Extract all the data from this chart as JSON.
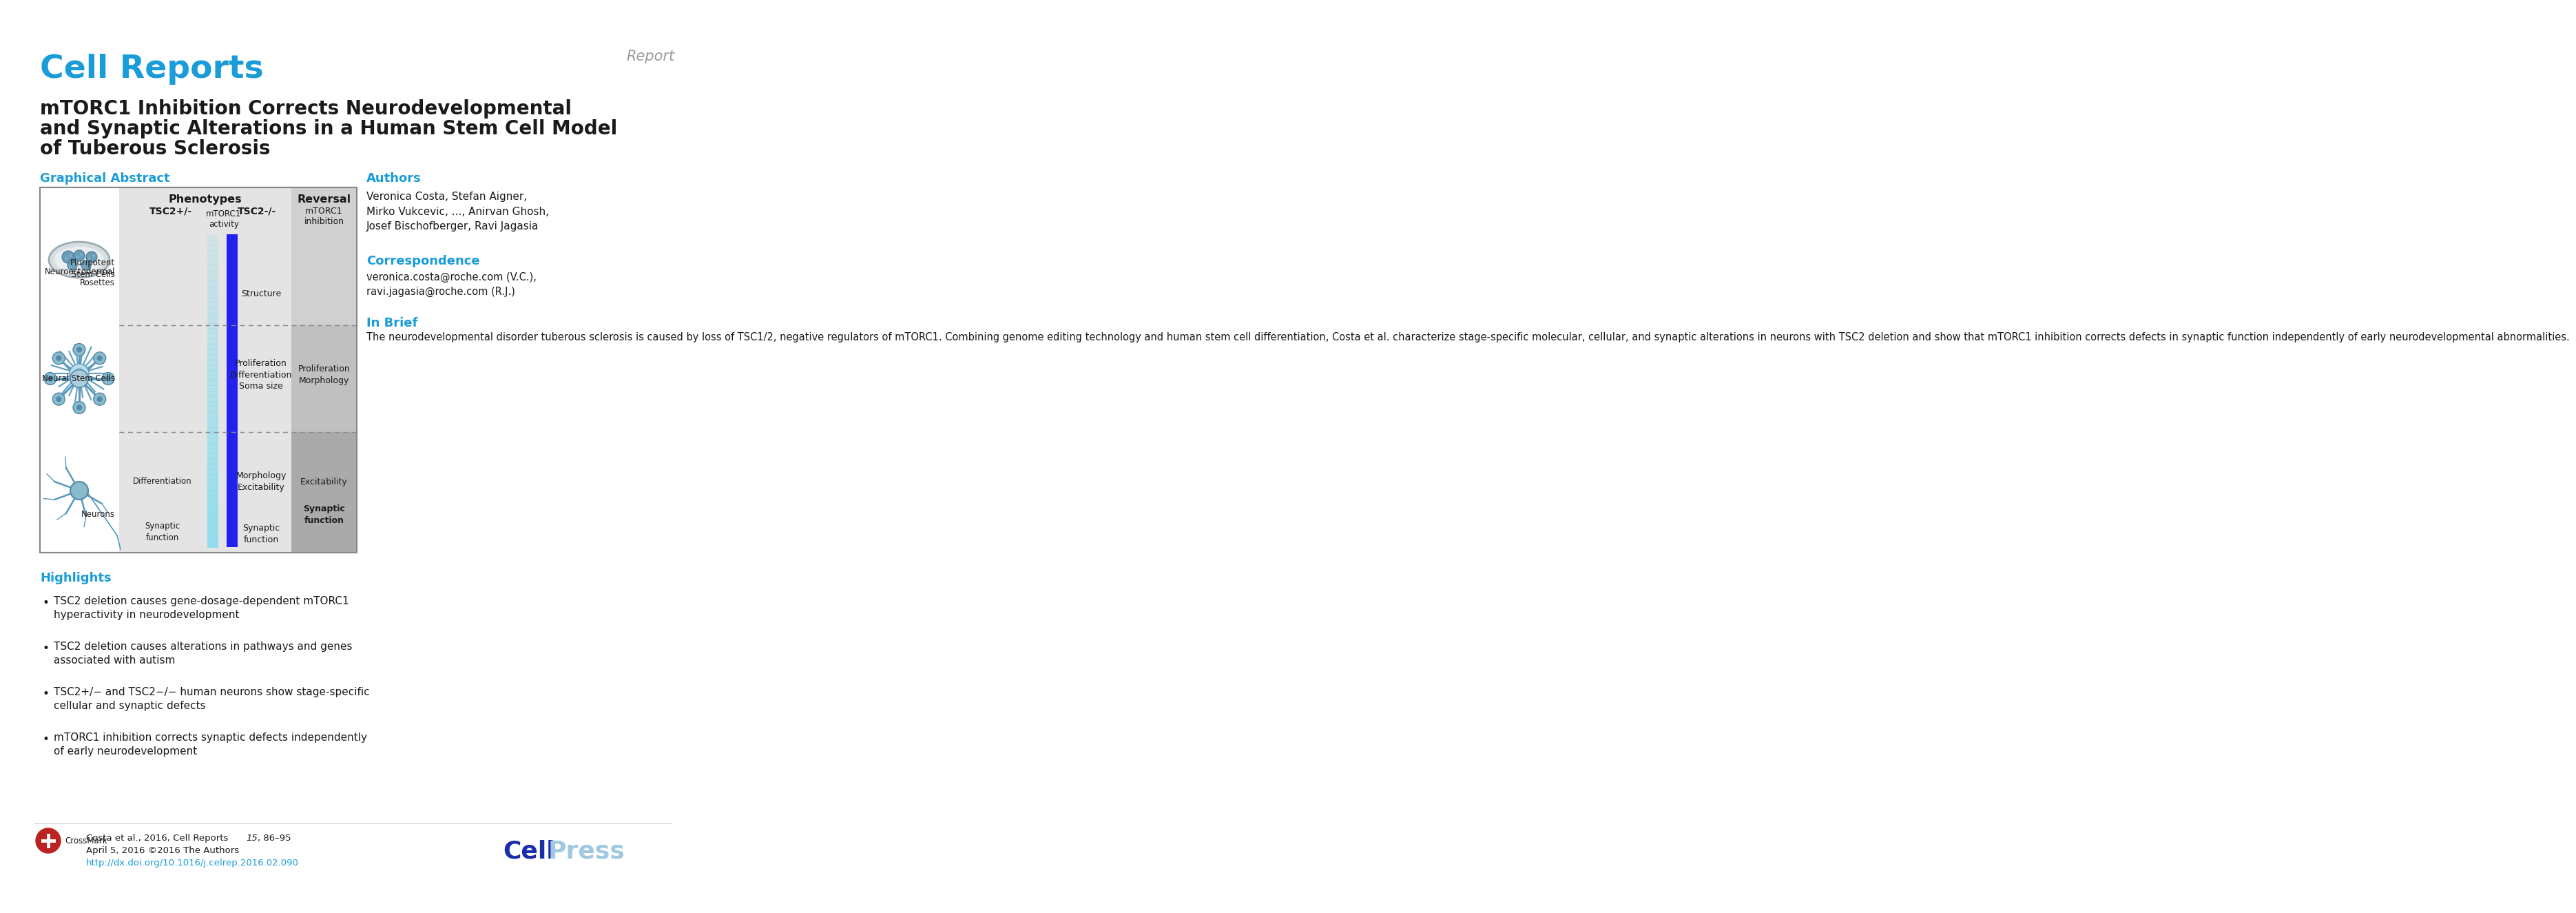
{
  "journal_name": "Cell Reports",
  "report_label": "Report",
  "title_line1": "mTORC1 Inhibition Corrects Neurodevelopmental",
  "title_line2": "and Synaptic Alterations in a Human Stem Cell Model",
  "title_line3": "of Tuberous Sclerosis",
  "graphical_abstract_label": "Graphical Abstract",
  "authors_label": "Authors",
  "authors_text": "Veronica Costa, Stefan Aigner,\nMirko Vukcevic, ..., Anirvan Ghosh,\nJosef Bischofberger, Ravi Jagasia",
  "correspondence_label": "Correspondence",
  "correspondence_text": "veronica.costa@roche.com (V.C.),\nravi.jagasia@roche.com (R.J.)",
  "inbrief_label": "In Brief",
  "inbrief_text": "The neurodevelopmental disorder tuberous sclerosis is caused by loss of TSC1/2, negative regulators of mTORC1. Combining genome editing technology and human stem cell differentiation, Costa et al. characterize stage-specific molecular, cellular, and synaptic alterations in neurons with TSC2 deletion and show that mTORC1 inhibition corrects defects in synaptic function independently of early neurodevelopmental abnormalities.",
  "highlights_label": "Highlights",
  "highlight1_italic": "TSC2",
  "highlight1_rest": " deletion causes gene-dosage-dependent mTORC1\nhyperactivity in neurodevelopment",
  "highlight2_italic": "TSC2",
  "highlight2_rest": " deletion causes alterations in pathways and genes\nassociated with autism",
  "highlight3_pre": "",
  "highlight3_italic": "TSC2",
  "highlight3_sup1": "+/−",
  "highlight3_mid": " and ",
  "highlight3_italic2": "TSC2",
  "highlight3_sup2": "−/−",
  "highlight3_rest": " human neurons show stage-specific\ncellular and synaptic defects",
  "highlight4": "mTORC1 inhibition corrects synaptic defects independently\nof early neurodevelopment",
  "footer_citation_pre": "Costa et al., 2016, Cell Reports ",
  "footer_citation_italic": "15",
  "footer_citation_post": ", 86–95",
  "footer_date": "April 5, 2016 ©2016 The Authors",
  "footer_doi": "http://dx.doi.org/10.1016/j.celrep.2016.02.090",
  "blue_color": "#1a9cd8",
  "dark_blue": "#0a3a9f",
  "light_blue_press": "#a8d4e8",
  "gray_color": "#999999",
  "dark_color": "#1a1a1a",
  "background": "#ffffff",
  "box_border": "#888888",
  "pheno_bg": "#e4e4e4",
  "reversal_bg_top": "#d0d0d0",
  "reversal_bg_mid": "#c0c0c0",
  "reversal_bg_bot": "#aaaaaa",
  "cyan_bar": "#aae8e8",
  "blue_bar": "#2222ee"
}
